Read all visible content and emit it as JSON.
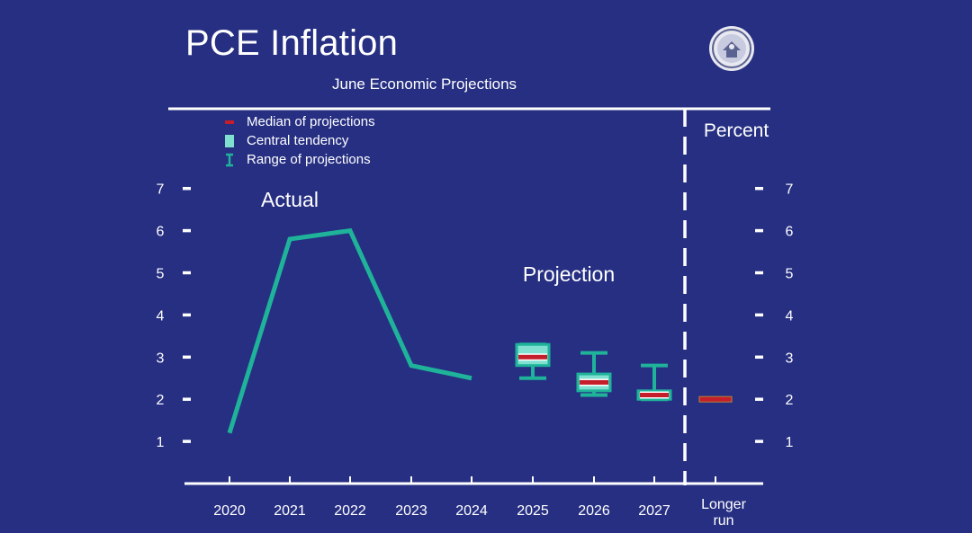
{
  "title": "PCE Inflation",
  "subtitle": "June Economic Projections",
  "legend": {
    "median": "Median of projections",
    "central": "Central tendency",
    "range": "Range of projections"
  },
  "annotations": {
    "actual": "Actual",
    "projection": "Projection",
    "percent": "Percent"
  },
  "seal_icon": "federal-reserve-seal-icon",
  "colors": {
    "background": "#262f82",
    "line": "#1fb39a",
    "central": "#7fe0d0",
    "median": "#c41e2a",
    "axis": "#ffffff"
  },
  "chart_data": {
    "type": "line",
    "title": "PCE Inflation",
    "subtitle": "June Economic Projections",
    "ylabel": "Percent",
    "ylim": [
      0,
      7.5
    ],
    "yticks": [
      "1",
      "2",
      "3",
      "4",
      "5",
      "6",
      "7"
    ],
    "categories": [
      "2020",
      "2021",
      "2022",
      "2023",
      "2024",
      "2025",
      "2026",
      "2027",
      "Longer run"
    ],
    "actual": {
      "x": [
        "2020",
        "2021",
        "2022",
        "2023",
        "2024"
      ],
      "values": [
        1.2,
        5.8,
        6.0,
        2.8,
        2.5
      ]
    },
    "projections": [
      {
        "x": "2025",
        "range": [
          2.5,
          3.3
        ],
        "central": [
          2.8,
          3.3
        ],
        "median": 3.0
      },
      {
        "x": "2026",
        "range": [
          2.1,
          3.1
        ],
        "central": [
          2.2,
          2.6
        ],
        "median": 2.4
      },
      {
        "x": "2027",
        "range": [
          2.0,
          2.8
        ],
        "central": [
          2.0,
          2.2
        ],
        "median": 2.1
      },
      {
        "x": "Longer run",
        "range": [
          2.0,
          2.0
        ],
        "central": [
          2.0,
          2.0
        ],
        "median": 2.0
      }
    ]
  }
}
